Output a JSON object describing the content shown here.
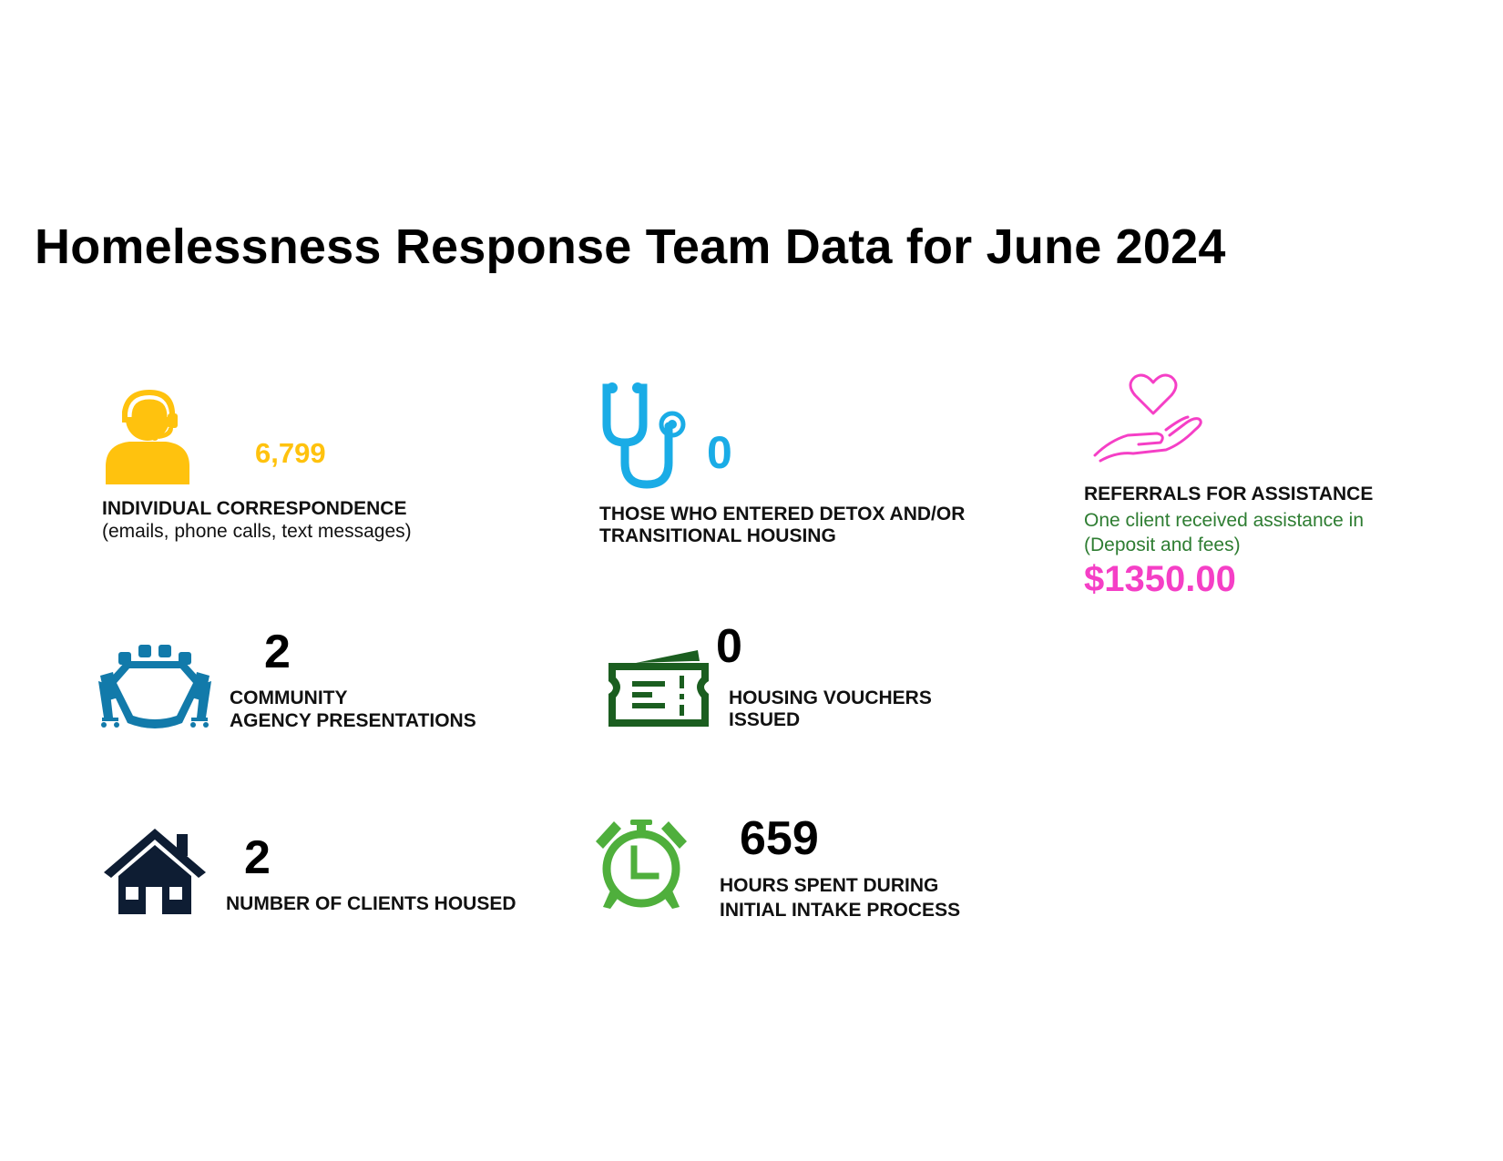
{
  "title": "Homelessness Response Team Data for June 2024",
  "colors": {
    "correspondence": "#FFC20E",
    "detox": "#1AACE6",
    "referrals": "#F53FC6",
    "presentations": "#127AAA",
    "vouchers": "#1B5E20",
    "housed": "#0E1D33",
    "hours": "#4FAF3C",
    "referral_note": "#2E7D32"
  },
  "stats": {
    "correspondence": {
      "icon": "headset-person-icon",
      "value": "6,799",
      "label": "INDIVIDUAL CORRESPONDENCE",
      "sub": "(emails, phone calls, text messages)"
    },
    "detox": {
      "icon": "stethoscope-icon",
      "value": "0",
      "label_line1": "THOSE WHO ENTERED DETOX AND/OR",
      "label_line2": "TRANSITIONAL HOUSING"
    },
    "referrals": {
      "icon": "heart-in-hand-icon",
      "label": "REFERRALS FOR ASSISTANCE",
      "note_line1": "One client received assistance in",
      "note_line2": "(Deposit and fees)",
      "amount": "$1350.00"
    },
    "presentations": {
      "icon": "conference-table-icon",
      "value": "2",
      "label_line1": "COMMUNITY",
      "label_line2": "AGENCY PRESENTATIONS"
    },
    "vouchers": {
      "icon": "ticket-voucher-icon",
      "value": "0",
      "label_line1": "HOUSING VOUCHERS",
      "label_line2": "ISSUED"
    },
    "housed": {
      "icon": "house-icon",
      "value": "2",
      "label": "NUMBER OF CLIENTS HOUSED"
    },
    "hours": {
      "icon": "alarm-clock-icon",
      "value": "659",
      "label_line1": "HOURS SPENT DURING",
      "label_line2": "INITIAL INTAKE PROCESS"
    }
  }
}
